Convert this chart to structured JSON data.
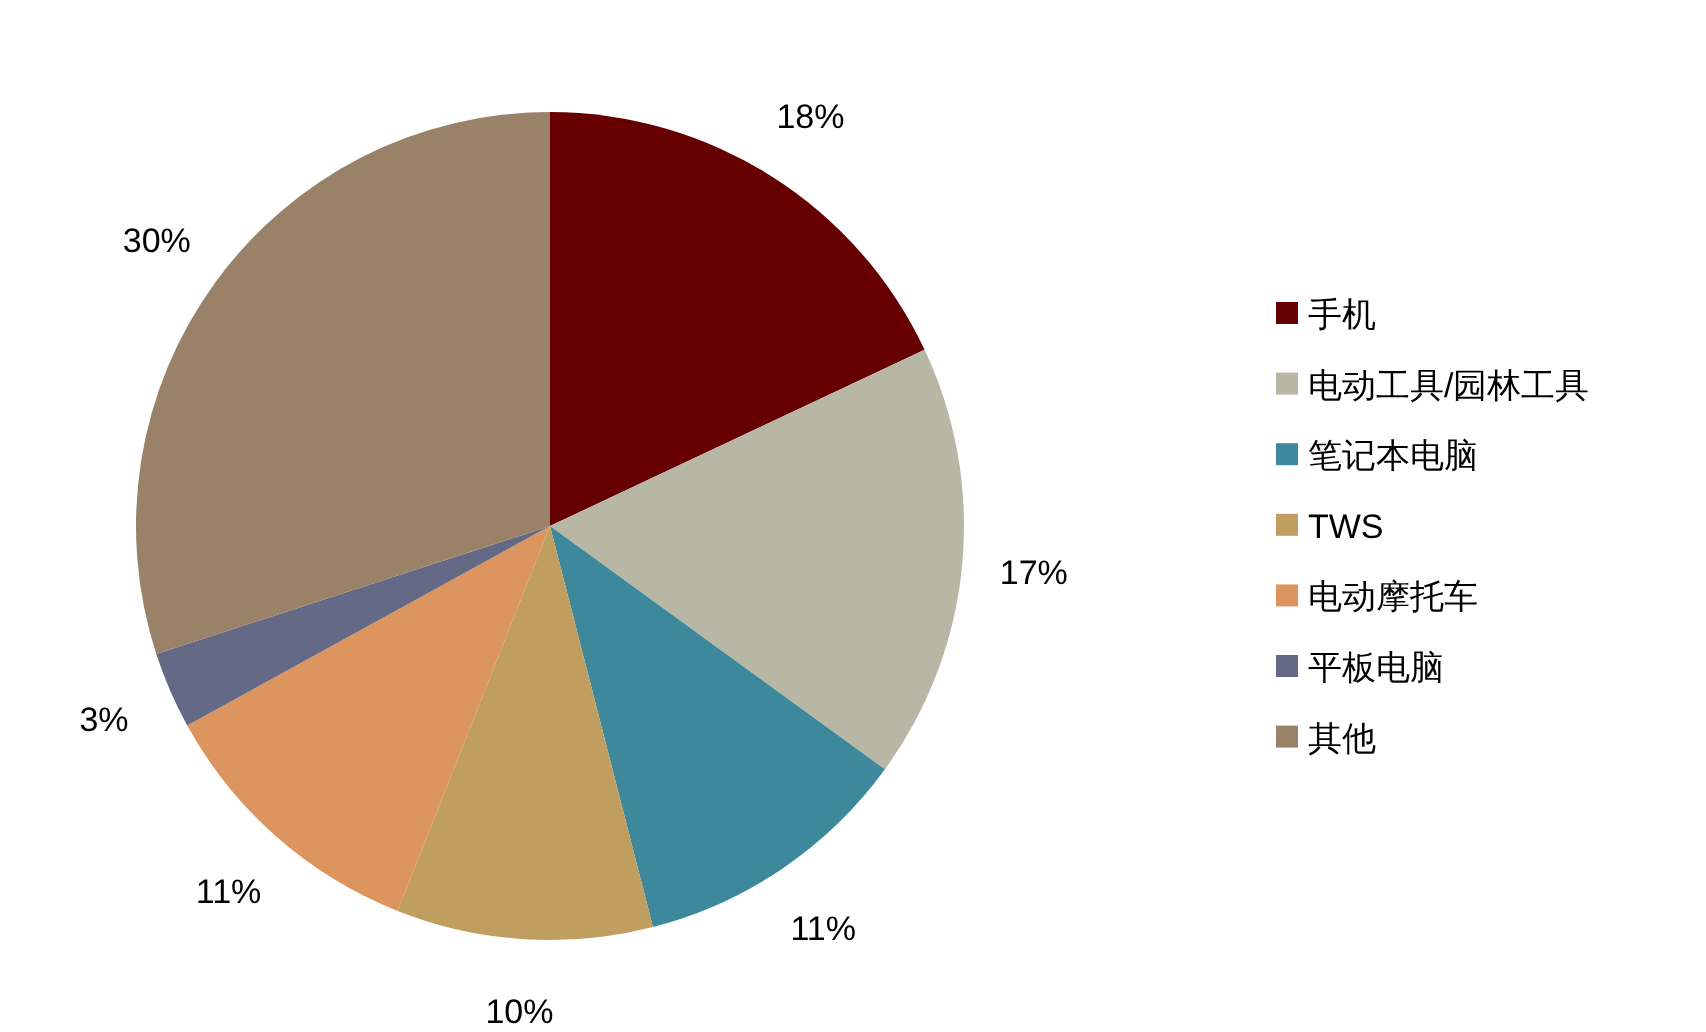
{
  "chart_data": {
    "type": "pie",
    "categories": [
      "手机",
      "电动工具/园林工具",
      "笔记本电脑",
      "TWS",
      "电动摩托车",
      "平板电脑",
      "其他"
    ],
    "values": [
      18,
      17,
      11,
      10,
      11,
      3,
      30
    ],
    "colors": [
      "#660000",
      "#b8b7a6",
      "#3d899b",
      "#bf9e5f",
      "#dd955f",
      "#646a86",
      "#9a8268"
    ],
    "value_labels": [
      "18%",
      "17%",
      "11%",
      "10%",
      "11%",
      "3%",
      "30%"
    ],
    "legend": "right"
  }
}
